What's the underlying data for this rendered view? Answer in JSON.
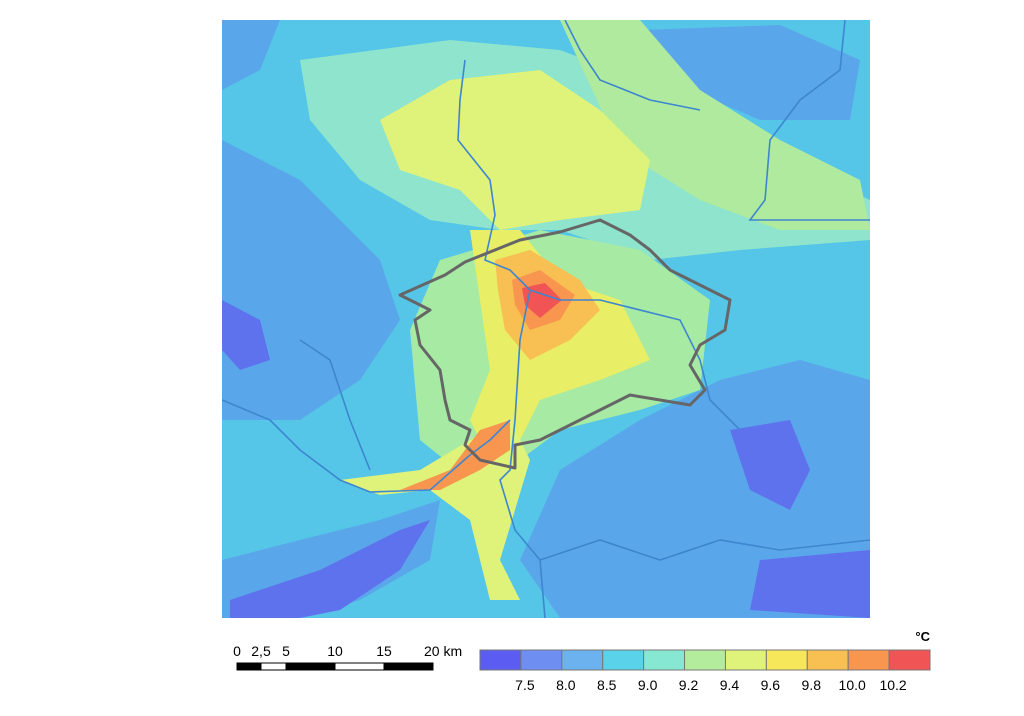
{
  "scale_bar": {
    "labels": [
      "0",
      "2,5",
      "5",
      "10",
      "15",
      "20 km"
    ]
  },
  "legend": {
    "unit": "°C",
    "labels": [
      "7.5",
      "8.0",
      "8.5",
      "9.0",
      "9.2",
      "9.4",
      "9.6",
      "9.8",
      "10.0",
      "10.2"
    ],
    "colors": [
      "#5b5cf2",
      "#6e8ef2",
      "#6cb2ee",
      "#5ad2ea",
      "#86e8d2",
      "#b4ec9e",
      "#dff27a",
      "#f6e65a",
      "#f8bf52",
      "#f89650",
      "#f05454"
    ]
  }
}
